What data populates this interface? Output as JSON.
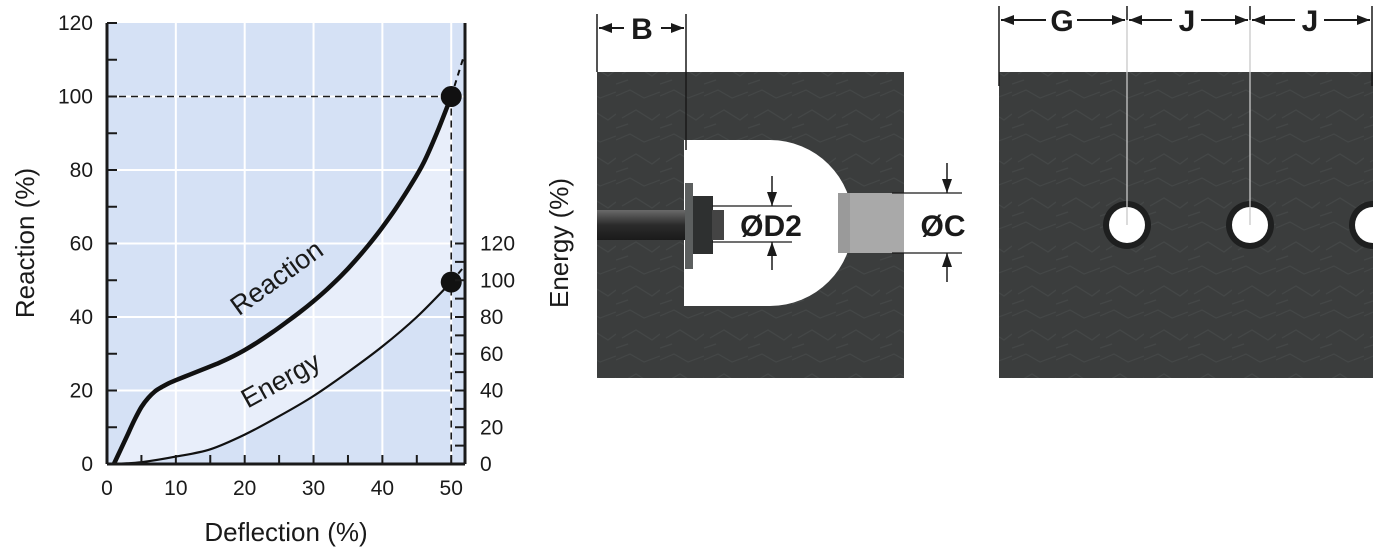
{
  "chart_data": {
    "type": "line",
    "xlabel": "Deflection (%)",
    "ylabel": "Reaction (%)",
    "y2label": "Energy (%)",
    "xlim": [
      0,
      52
    ],
    "ylim": [
      0,
      120
    ],
    "y2lim": [
      0,
      240
    ],
    "x_ticks": [
      0,
      10,
      20,
      30,
      40,
      50
    ],
    "y_ticks": [
      0,
      20,
      40,
      60,
      80,
      100,
      120
    ],
    "y2_ticks": [
      0,
      20,
      40,
      60,
      80,
      100,
      120
    ],
    "grid": true,
    "series": [
      {
        "name": "Reaction",
        "x": [
          1,
          2,
          3,
          4,
          5,
          6,
          7,
          8,
          9,
          10,
          12,
          14,
          16,
          18,
          20,
          22,
          24,
          26,
          28,
          30,
          32,
          34,
          36,
          38,
          40,
          42,
          44,
          46,
          48,
          50
        ],
        "values": [
          0,
          4,
          8,
          12,
          15.5,
          18,
          19.8,
          21,
          22,
          22.8,
          24.3,
          25.8,
          27.3,
          29,
          31,
          33.3,
          35.8,
          38.5,
          41.3,
          44.3,
          47.6,
          51.2,
          55.2,
          59.6,
          64.4,
          69.7,
          75.5,
          82,
          90.5,
          100
        ]
      },
      {
        "name": "Energy",
        "x": [
          1,
          5,
          10,
          15,
          20,
          25,
          30,
          35,
          40,
          45,
          50
        ],
        "values": [
          0,
          1,
          4,
          8,
          16,
          26,
          37,
          50,
          64,
          80,
          99
        ]
      }
    ],
    "extension": {
      "x": [
        50,
        52
      ],
      "reaction": [
        100,
        112
      ],
      "energy": [
        99,
        108
      ]
    },
    "markers": [
      {
        "series": "Reaction",
        "x": 50,
        "y": 100
      },
      {
        "series": "Energy",
        "x": 50,
        "y": 99
      }
    ],
    "reference_lines": {
      "x": 50,
      "y": 100
    }
  },
  "diagram_labels": {
    "bolt_offset": "B",
    "bolt_dia": "ØD2",
    "counterbore_dia": "ØC",
    "end_pitch": "G",
    "pitch_1": "J",
    "pitch_2": "J"
  },
  "colors": {
    "plot_background": "#d5e1f5",
    "energy_fill": "#e8eefa",
    "grid": "#ffffff",
    "curve": "#111111",
    "rubber": "#3b3d3d",
    "hole": "#ffffff",
    "counterbore": "#a9a9a9"
  }
}
